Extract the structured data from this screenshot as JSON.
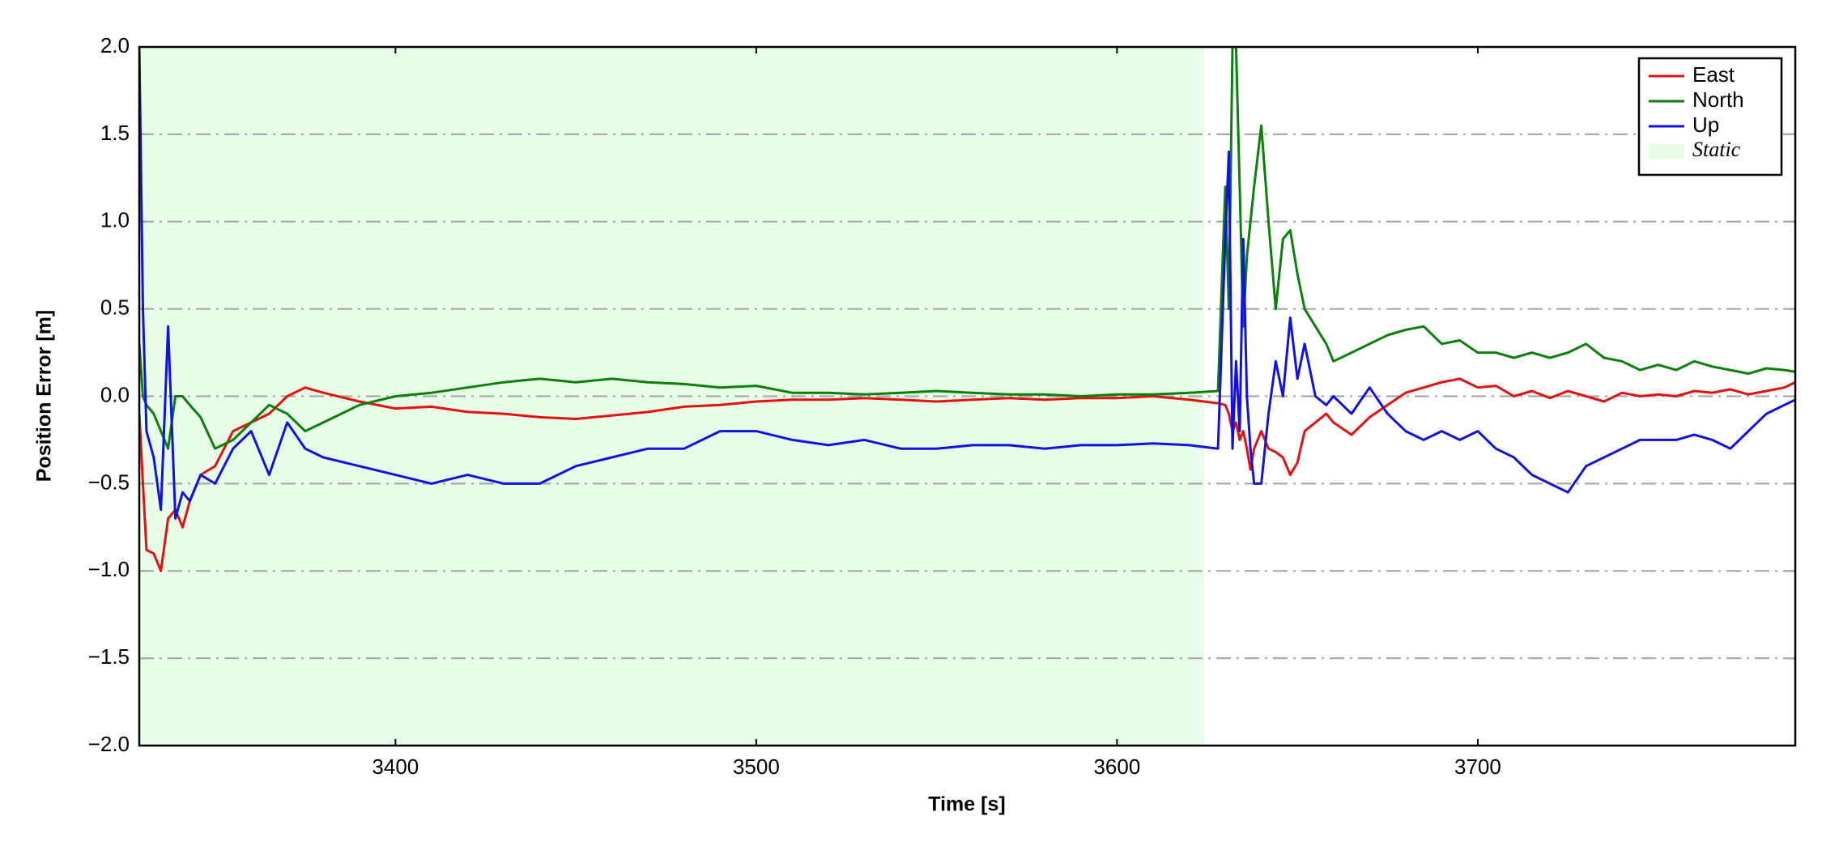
{
  "chart_data": {
    "type": "line",
    "xlabel": "Time [s]",
    "ylabel": "Position Error [m]",
    "x": [
      3329,
      3330,
      3331,
      3333,
      3335,
      3337,
      3339,
      3341,
      3343,
      3346,
      3350,
      3355,
      3360,
      3365,
      3370,
      3375,
      3380,
      3390,
      3400,
      3410,
      3420,
      3430,
      3440,
      3450,
      3460,
      3470,
      3480,
      3490,
      3500,
      3510,
      3520,
      3530,
      3540,
      3550,
      3560,
      3570,
      3580,
      3590,
      3600,
      3610,
      3620,
      3628,
      3630,
      3631,
      3632,
      3633,
      3634,
      3635,
      3636,
      3637,
      3638,
      3640,
      3642,
      3644,
      3646,
      3648,
      3650,
      3652,
      3655,
      3658,
      3660,
      3665,
      3670,
      3675,
      3680,
      3685,
      3690,
      3695,
      3700,
      3705,
      3710,
      3715,
      3720,
      3725,
      3730,
      3735,
      3740,
      3745,
      3750,
      3755,
      3760,
      3765,
      3770,
      3775,
      3780,
      3785,
      3788
    ],
    "series": [
      {
        "name": "East",
        "color": "#e31212",
        "values": [
          -0.1,
          -0.5,
          -0.88,
          -0.9,
          -1.0,
          -0.7,
          -0.65,
          -0.75,
          -0.6,
          -0.45,
          -0.4,
          -0.2,
          -0.15,
          -0.1,
          0.0,
          0.05,
          0.02,
          -0.03,
          -0.07,
          -0.06,
          -0.09,
          -0.1,
          -0.12,
          -0.13,
          -0.11,
          -0.09,
          -0.06,
          -0.05,
          -0.03,
          -0.02,
          -0.02,
          -0.01,
          -0.02,
          -0.03,
          -0.02,
          -0.01,
          -0.02,
          -0.01,
          -0.01,
          0.0,
          -0.02,
          -0.04,
          -0.05,
          -0.1,
          -0.2,
          -0.15,
          -0.25,
          -0.2,
          -0.3,
          -0.42,
          -0.3,
          -0.2,
          -0.3,
          -0.32,
          -0.35,
          -0.45,
          -0.38,
          -0.2,
          -0.15,
          -0.1,
          -0.15,
          -0.22,
          -0.12,
          -0.05,
          0.02,
          0.05,
          0.08,
          0.1,
          0.05,
          0.06,
          0.0,
          0.03,
          -0.01,
          0.03,
          0.0,
          -0.03,
          0.02,
          0.0,
          0.01,
          0.0,
          0.03,
          0.02,
          0.04,
          0.01,
          0.03,
          0.05,
          0.08
        ]
      },
      {
        "name": "North",
        "color": "#0b800b",
        "values": [
          0.3,
          0.0,
          -0.05,
          -0.1,
          -0.2,
          -0.3,
          0.0,
          0.0,
          -0.05,
          -0.12,
          -0.3,
          -0.25,
          -0.15,
          -0.05,
          -0.1,
          -0.2,
          -0.15,
          -0.05,
          0.0,
          0.02,
          0.05,
          0.08,
          0.1,
          0.08,
          0.1,
          0.08,
          0.07,
          0.05,
          0.06,
          0.02,
          0.02,
          0.01,
          0.02,
          0.03,
          0.02,
          0.01,
          0.01,
          0.0,
          0.01,
          0.01,
          0.02,
          0.03,
          1.2,
          0.5,
          2.0,
          2.0,
          1.2,
          0.4,
          0.8,
          1.0,
          1.2,
          1.55,
          1.0,
          0.5,
          0.9,
          0.95,
          0.7,
          0.5,
          0.4,
          0.3,
          0.2,
          0.25,
          0.3,
          0.35,
          0.38,
          0.4,
          0.3,
          0.32,
          0.25,
          0.25,
          0.22,
          0.25,
          0.22,
          0.25,
          0.3,
          0.22,
          0.2,
          0.15,
          0.18,
          0.15,
          0.2,
          0.17,
          0.15,
          0.13,
          0.16,
          0.15,
          0.14
        ]
      },
      {
        "name": "Up",
        "color": "#1212e0",
        "values": [
          2.0,
          0.5,
          -0.2,
          -0.35,
          -0.65,
          0.4,
          -0.7,
          -0.55,
          -0.6,
          -0.45,
          -0.5,
          -0.3,
          -0.2,
          -0.45,
          -0.15,
          -0.3,
          -0.35,
          -0.4,
          -0.45,
          -0.5,
          -0.45,
          -0.5,
          -0.5,
          -0.4,
          -0.35,
          -0.3,
          -0.3,
          -0.2,
          -0.2,
          -0.25,
          -0.28,
          -0.25,
          -0.3,
          -0.3,
          -0.28,
          -0.28,
          -0.3,
          -0.28,
          -0.28,
          -0.27,
          -0.28,
          -0.3,
          0.9,
          1.4,
          -0.3,
          0.2,
          -0.2,
          0.9,
          0.0,
          -0.3,
          -0.5,
          -0.5,
          -0.1,
          0.2,
          0.0,
          0.45,
          0.1,
          0.3,
          0.0,
          -0.05,
          0.0,
          -0.1,
          0.05,
          -0.1,
          -0.2,
          -0.25,
          -0.2,
          -0.25,
          -0.2,
          -0.3,
          -0.35,
          -0.45,
          -0.5,
          -0.55,
          -0.4,
          -0.35,
          -0.3,
          -0.25,
          -0.25,
          -0.25,
          -0.22,
          -0.25,
          -0.3,
          -0.2,
          -0.1,
          -0.05,
          -0.02
        ]
      }
    ],
    "spans": [
      {
        "name": "Static",
        "start": 3329,
        "end": 3624,
        "color": "#e8fde8"
      }
    ],
    "xlim": [
      3329,
      3788
    ],
    "xticks": [
      3400,
      3500,
      3600,
      3700
    ],
    "ylim": [
      -2.0,
      2.0
    ],
    "yticks": [
      {
        "value": -2.0,
        "label": "−2.0"
      },
      {
        "value": -1.5,
        "label": "−1.5"
      },
      {
        "value": -1.0,
        "label": "−1.0"
      },
      {
        "value": -0.5,
        "label": "−0.5"
      },
      {
        "value": 0.0,
        "label": "0.0"
      },
      {
        "value": 0.5,
        "label": "0.5"
      },
      {
        "value": 1.0,
        "label": "1.0"
      },
      {
        "value": 1.5,
        "label": "1.5"
      },
      {
        "value": 2.0,
        "label": "2.0"
      }
    ],
    "grid": true,
    "legend": "upper right"
  }
}
